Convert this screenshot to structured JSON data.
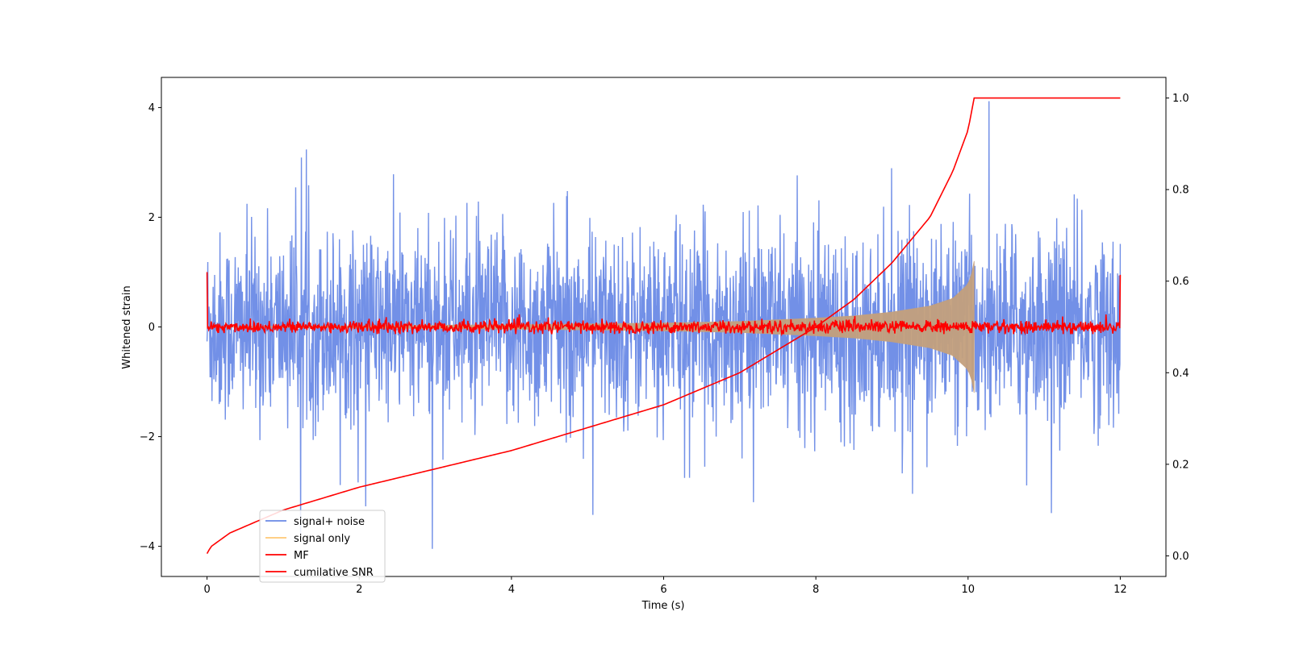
{
  "chart_data": {
    "type": "line",
    "title": "",
    "xlabel": "Time (s)",
    "ylabel": "Whitened strain",
    "y2label": "",
    "xlim": [
      -0.6,
      12.6
    ],
    "ylim": [
      -4.55,
      4.55
    ],
    "y2lim": [
      -0.045,
      1.045
    ],
    "xticks": [
      0,
      2,
      4,
      6,
      8,
      10,
      12
    ],
    "yticks": [
      -4,
      -2,
      0,
      2,
      4
    ],
    "y2ticks": [
      0.0,
      0.2,
      0.4,
      0.6,
      0.8,
      1.0
    ],
    "y2tick_labels": [
      "0.0",
      "0.2",
      "0.4",
      "0.6",
      "0.8",
      "1.0"
    ],
    "grid": false,
    "legend_position": "lower-left",
    "series": [
      {
        "name": "signal+ noise",
        "axis": "left",
        "color": "#6a8ae6",
        "x_range": [
          0,
          12
        ],
        "description_values": {
          "typical_amplitude_range": [
            -2.3,
            2.4
          ],
          "max_peak": 4.15,
          "min_peak": -4.1
        }
      },
      {
        "name": "signal only",
        "axis": "left",
        "color": "#ffc875",
        "fill_color": "#c4a07d",
        "x": [
          0,
          2,
          4,
          6,
          7,
          8,
          8.5,
          9,
          9.5,
          9.8,
          10.0,
          10.05,
          10.08
        ],
        "envelope": [
          0.0,
          0.02,
          0.04,
          0.07,
          0.1,
          0.16,
          0.2,
          0.27,
          0.38,
          0.52,
          0.78,
          0.98,
          1.2
        ]
      },
      {
        "name": "MF",
        "axis": "left",
        "color": "#ff0000",
        "x_range": [
          0,
          12
        ],
        "baseline": 0.0,
        "noise_amplitude": 0.12,
        "edge_value": 1.0
      },
      {
        "name": "cumilative SNR",
        "axis": "right",
        "color": "#ff0000",
        "x": [
          0,
          0.05,
          0.3,
          1.0,
          2.0,
          3.0,
          4.0,
          5.0,
          6.0,
          7.0,
          8.0,
          8.5,
          9.0,
          9.5,
          9.8,
          10.0,
          10.08,
          12.0
        ],
        "values": [
          0.005,
          0.02,
          0.05,
          0.1,
          0.15,
          0.19,
          0.23,
          0.28,
          0.33,
          0.4,
          0.5,
          0.56,
          0.64,
          0.74,
          0.84,
          0.93,
          1.0,
          1.0
        ]
      }
    ]
  }
}
